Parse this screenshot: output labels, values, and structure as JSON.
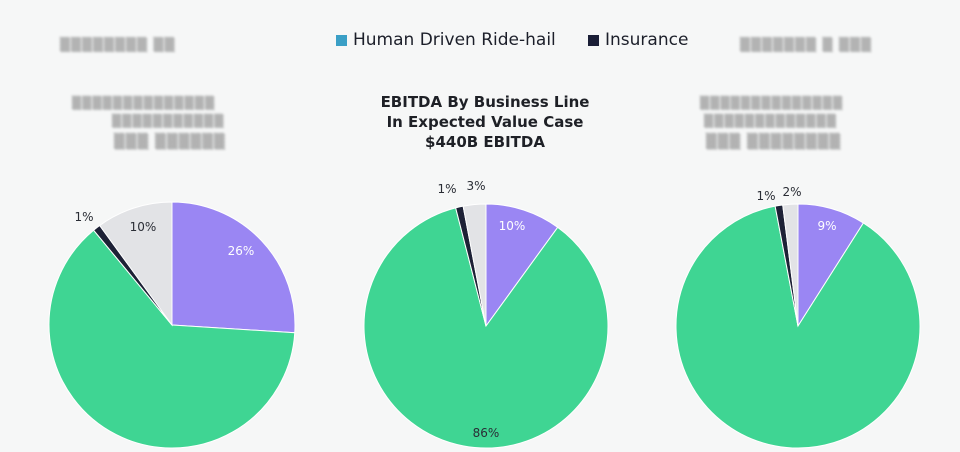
{
  "legend": {
    "items": [
      {
        "label": "Human Driven Ride-hail",
        "color": "#3a9fc6"
      },
      {
        "label": "Insurance",
        "color": "#1a1e36"
      }
    ]
  },
  "colors": {
    "purple": "#9a86f3",
    "green": "#3fd593",
    "dark": "#1d2136",
    "light_gray": "#e2e3e6",
    "label_light": "#ffffff",
    "label_dark": "#2a2d35"
  },
  "chart_data": [
    {
      "type": "pie",
      "title": "",
      "slices": [
        {
          "name": "",
          "value": 26,
          "label": "26%",
          "color": "#9a86f3",
          "label_inside": true
        },
        {
          "name": "",
          "value": 63,
          "label": "",
          "color": "#3fd593",
          "label_inside": true
        },
        {
          "name": "",
          "value": 1,
          "label": "1%",
          "color": "#1d2136",
          "label_inside": false
        },
        {
          "name": "",
          "value": 10,
          "label": "10%",
          "color": "#e2e3e6",
          "label_inside": true
        }
      ]
    },
    {
      "type": "pie",
      "title": "EBITDA By Business Line\nIn Expected Value Case\n$440B EBITDA",
      "slices": [
        {
          "name": "",
          "value": 10,
          "label": "10%",
          "color": "#9a86f3",
          "label_inside": true
        },
        {
          "name": "",
          "value": 86,
          "label": "86%",
          "color": "#3fd593",
          "label_inside": true
        },
        {
          "name": "",
          "value": 1,
          "label": "1%",
          "color": "#1d2136",
          "label_inside": false
        },
        {
          "name": "",
          "value": 3,
          "label": "3%",
          "color": "#e2e3e6",
          "label_inside": false
        }
      ]
    },
    {
      "type": "pie",
      "title": "",
      "slices": [
        {
          "name": "",
          "value": 9,
          "label": "9%",
          "color": "#9a86f3",
          "label_inside": true
        },
        {
          "name": "",
          "value": 88,
          "label": "",
          "color": "#3fd593",
          "label_inside": true
        },
        {
          "name": "",
          "value": 1,
          "label": "1%",
          "color": "#1d2136",
          "label_inside": false
        },
        {
          "name": "",
          "value": 2,
          "label": "2%",
          "color": "#e2e3e6",
          "label_inside": false
        }
      ]
    }
  ]
}
